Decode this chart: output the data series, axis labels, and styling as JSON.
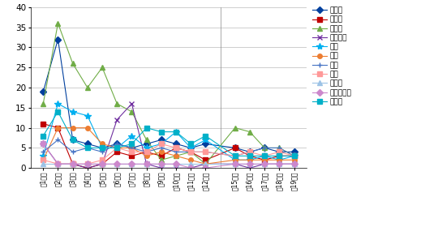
{
  "x_labels": [
    "第1期城",
    "第2期城",
    "第3期城",
    "第4期城",
    "第5期城",
    "第6期城",
    "第7期城",
    "第8期城",
    "第9期城",
    "第10期城",
    "第11期城",
    "第12期城",
    "第15期城",
    "第16期城",
    "第17期城",
    "第18期城",
    "第19期城"
  ],
  "series": [
    {
      "name": "循環器",
      "color": "#003F9E",
      "marker": "D",
      "markersize": 4,
      "values": [
        19,
        32,
        7,
        6,
        5,
        6,
        5,
        6,
        7,
        6,
        5,
        6,
        5,
        4,
        5,
        4,
        4
      ]
    },
    {
      "name": "消化器",
      "color": "#C00000",
      "marker": "s",
      "markersize": 4,
      "values": [
        11,
        10,
        1,
        0,
        1,
        4,
        3,
        4,
        3,
        5,
        4,
        2,
        5,
        3,
        2,
        3,
        3
      ]
    },
    {
      "name": "呼吸器",
      "color": "#70AD47",
      "marker": "^",
      "markersize": 5,
      "values": [
        16,
        36,
        26,
        20,
        25,
        16,
        14,
        7,
        2,
        3,
        4,
        1,
        10,
        9,
        5,
        5,
        3
      ]
    },
    {
      "name": "中枢神経",
      "color": "#7030A0",
      "marker": "x",
      "markersize": 5,
      "values": [
        6,
        1,
        1,
        0,
        1,
        12,
        16,
        1,
        0,
        0,
        0,
        1,
        1,
        0,
        1,
        1,
        1
      ]
    },
    {
      "name": "外傷",
      "color": "#00B0F0",
      "marker": "*",
      "markersize": 6,
      "values": [
        3,
        16,
        14,
        13,
        5,
        5,
        8,
        5,
        6,
        9,
        5,
        7,
        2,
        2,
        3,
        2,
        3
      ]
    },
    {
      "name": "代謝",
      "color": "#ED7D31",
      "marker": "o",
      "markersize": 4,
      "values": [
        2,
        10,
        10,
        10,
        6,
        5,
        5,
        3,
        4,
        3,
        2,
        1,
        2,
        2,
        2,
        2,
        2
      ]
    },
    {
      "name": "整形",
      "color": "#4472C4",
      "marker": "+",
      "markersize": 5,
      "values": [
        4,
        7,
        4,
        5,
        4,
        6,
        5,
        4,
        5,
        4,
        4,
        4,
        3,
        4,
        5,
        5,
        3
      ]
    },
    {
      "name": "精神",
      "color": "#FF9999",
      "marker": "s",
      "markersize": 4,
      "values": [
        2,
        1,
        1,
        1,
        2,
        5,
        4,
        4,
        6,
        5,
        4,
        4,
        3,
        4,
        3,
        4,
        3
      ]
    },
    {
      "name": "泌尿器",
      "color": "#9DC3E6",
      "marker": "^",
      "markersize": 4,
      "values": [
        1,
        1,
        1,
        1,
        1,
        1,
        1,
        1,
        1,
        1,
        1,
        1,
        1,
        1,
        1,
        1,
        1
      ]
    },
    {
      "name": "アレルギー",
      "color": "#CC88CC",
      "marker": "D",
      "markersize": 4,
      "values": [
        6,
        1,
        1,
        1,
        1,
        1,
        1,
        1,
        1,
        1,
        0,
        0,
        1,
        1,
        1,
        1,
        1
      ]
    },
    {
      "name": "その他",
      "color": "#00B0C8",
      "marker": "s",
      "markersize": 4,
      "values": [
        8,
        14,
        7,
        5,
        5,
        5,
        6,
        10,
        9,
        9,
        6,
        8,
        3,
        3,
        3,
        3,
        3
      ]
    }
  ],
  "ylim": [
    0,
    40
  ],
  "yticks": [
    0,
    5,
    10,
    15,
    20,
    25,
    30,
    35,
    40
  ],
  "figsize": [
    5.4,
    2.96
  ],
  "dpi": 100
}
